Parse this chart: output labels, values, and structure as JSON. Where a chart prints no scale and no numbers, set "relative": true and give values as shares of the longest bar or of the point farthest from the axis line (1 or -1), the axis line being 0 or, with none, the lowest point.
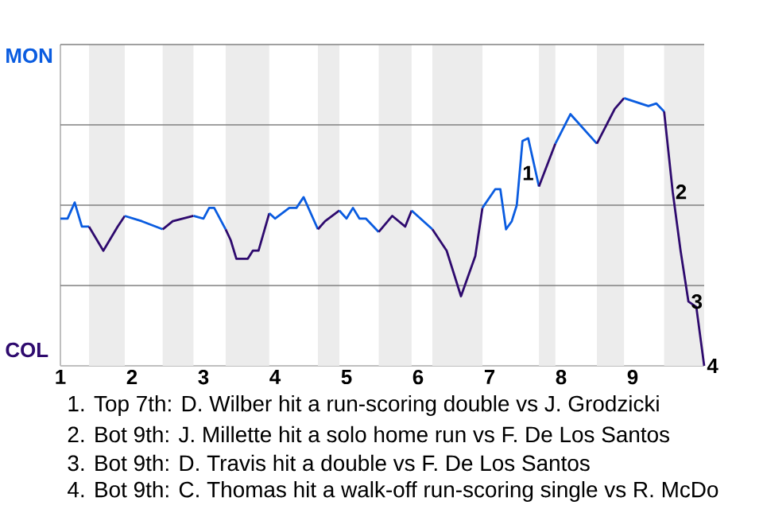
{
  "chart_data": {
    "type": "line",
    "relative": true,
    "series": [
      {
        "color": "#0a5ce0",
        "x": [
          1,
          1.1,
          1.2,
          1.3,
          1.4
        ],
        "values": [
          0.55,
          0.55,
          0.61,
          0.52,
          0.52
        ]
      },
      {
        "color": "#2e0a6e",
        "x": [
          1.4,
          1.6,
          1.8,
          1.9
        ],
        "values": [
          0.52,
          0.43,
          0.52,
          0.56
        ]
      },
      {
        "color": "#0a5ce0",
        "x": [
          1.9,
          2.14,
          2.43
        ],
        "values": [
          0.56,
          0.54,
          0.51
        ]
      },
      {
        "color": "#2e0a6e",
        "x": [
          2.43,
          2.57,
          2.86
        ],
        "values": [
          0.51,
          0.54,
          0.56
        ]
      },
      {
        "color": "#0a5ce0",
        "x": [
          2.86,
          3,
          3.08,
          3.15,
          3.31
        ],
        "values": [
          0.56,
          0.55,
          0.59,
          0.59,
          0.51
        ]
      },
      {
        "color": "#2e0a6e",
        "x": [
          3.31,
          3.38,
          3.46,
          3.62,
          3.69,
          3.77,
          3.92
        ],
        "values": [
          0.51,
          0.47,
          0.4,
          0.4,
          0.43,
          0.43,
          0.57
        ]
      },
      {
        "color": "#0a5ce0",
        "x": [
          3.92,
          4,
          4.2,
          4.3,
          4.4,
          4.6
        ],
        "values": [
          0.57,
          0.55,
          0.59,
          0.59,
          0.63,
          0.51
        ]
      },
      {
        "color": "#2e0a6e",
        "x": [
          4.6,
          4.7,
          4.8,
          4.9
        ],
        "values": [
          0.51,
          0.54,
          0.56,
          0.58
        ]
      },
      {
        "color": "#0a5ce0",
        "x": [
          4.9,
          5,
          5.09,
          5.18,
          5.27,
          5.45
        ],
        "values": [
          0.58,
          0.55,
          0.59,
          0.55,
          0.55,
          0.5
        ]
      },
      {
        "color": "#2e0a6e",
        "x": [
          5.45,
          5.64,
          5.82,
          5.91
        ],
        "values": [
          0.5,
          0.56,
          0.52,
          0.58
        ]
      },
      {
        "color": "#0a5ce0",
        "x": [
          5.91,
          6.2
        ],
        "values": [
          0.58,
          0.51
        ]
      },
      {
        "color": "#2e0a6e",
        "x": [
          6.2,
          6.4,
          6.6,
          6.8,
          6.9
        ],
        "values": [
          0.51,
          0.43,
          0.26,
          0.41,
          0.59
        ]
      },
      {
        "color": "#0a5ce0",
        "x": [
          6.9,
          7.08,
          7.15,
          7.23,
          7.31,
          7.38,
          7.46,
          7.54,
          7.69
        ],
        "values": [
          0.59,
          0.66,
          0.66,
          0.51,
          0.54,
          0.6,
          0.84,
          0.85,
          0.67
        ]
      },
      {
        "color": "#2e0a6e",
        "x": [
          7.69,
          7.92
        ],
        "values": [
          0.67,
          0.83
        ]
      },
      {
        "color": "#0a5ce0",
        "x": [
          7.92,
          8.13,
          8.5
        ],
        "values": [
          0.83,
          0.94,
          0.83
        ]
      },
      {
        "color": "#2e0a6e",
        "x": [
          8.5,
          8.75,
          8.88
        ],
        "values": [
          0.83,
          0.96,
          1
        ]
      },
      {
        "color": "#0a5ce0",
        "x": [
          8.88,
          9.22,
          9.33,
          9.44
        ],
        "values": [
          1,
          0.97,
          0.98,
          0.95
        ]
      },
      {
        "color": "#2e0a6e",
        "x": [
          9.44,
          9.56,
          9.67,
          9.78,
          9.89,
          10
        ],
        "values": [
          0.95,
          0.65,
          0.43,
          0.24,
          0.22,
          0
        ]
      }
    ],
    "xlim": [
      1,
      10
    ],
    "xticks": [
      1,
      2,
      3,
      4,
      5,
      6,
      7,
      8,
      9
    ],
    "grid": "y",
    "line_style": "solid",
    "marker": "none",
    "bands": [
      {
        "axis": "x",
        "from": 1.4,
        "to": 1.9,
        "color": "#ececec"
      },
      {
        "axis": "x",
        "from": 2.43,
        "to": 2.86,
        "color": "#ececec"
      },
      {
        "axis": "x",
        "from": 3.31,
        "to": 3.92,
        "color": "#ececec"
      },
      {
        "axis": "x",
        "from": 4.6,
        "to": 4.9,
        "color": "#ececec"
      },
      {
        "axis": "x",
        "from": 5.45,
        "to": 5.91,
        "color": "#ececec"
      },
      {
        "axis": "x",
        "from": 6.2,
        "to": 6.9,
        "color": "#ececec"
      },
      {
        "axis": "x",
        "from": 7.69,
        "to": 7.92,
        "color": "#ececec"
      },
      {
        "axis": "x",
        "from": 8.5,
        "to": 8.88,
        "color": "#ececec"
      },
      {
        "axis": "x",
        "from": 9.44,
        "to": 10,
        "color": "#ececec"
      }
    ],
    "annotations": [
      "MON",
      "COL",
      {
        "text": "1",
        "x": 7.42,
        "y": 0.72
      },
      {
        "text": "2",
        "x": 9.56,
        "y": 0.65
      },
      {
        "text": "3",
        "x": 9.78,
        "y": 0.24
      },
      {
        "text": "4",
        "x": 10,
        "y": 0
      },
      "1. Top 7th: D. Wilber hit a run-scoring double vs J. Grodzicki",
      "2. Bot 9th: J. Millette hit a solo home run vs F. De Los Santos",
      "3. Bot 9th: D. Travis hit a double vs F. De Los Santos",
      "4. Bot 9th: C. Thomas hit a walk-off run-scoring single vs R. McDo"
    ]
  }
}
